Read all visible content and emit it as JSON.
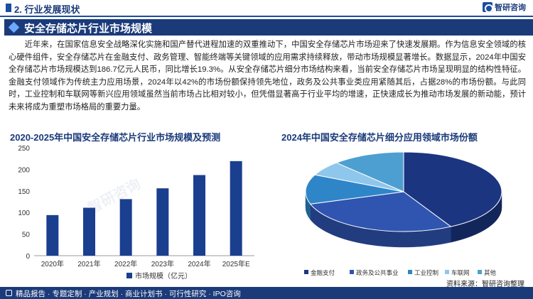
{
  "header": {
    "section_title": "2. 行业发展现状",
    "logo_text": "智研咨询"
  },
  "banner": {
    "title": "安全存储芯片行业市场规模"
  },
  "body": {
    "paragraph": "近年来，在国家信息安全战略深化实施和国产替代进程加速的双重推动下，中国安全存储芯片市场迎来了快速发展期。作为信息安全领域的核心硬件组件，安全存储芯片在金融支付、政务管理、智能终端等关键领域的应用需求持续释放，带动市场规模显著增长。数据显示，2024年中国安全存储芯片市场规模达到186.7亿元人民币，同比增长19.3%。从安全存储芯片细分市场结构来看，当前安全存储芯片市场呈现明显的结构性特征。金融支付领域作为传统主力应用场景，2024年以42%的市场份额保持领先地位，政务及公共事业类应用紧随其后，占据28%的市场份额。与此同时，工业控制和车联网等新兴应用领域虽然当前市场占比相对较小，但凭借显著高于行业平均的增速，正快速成长为推动市场发展的新动能，预计未来将成为重塑市场格局的重要力量。"
  },
  "colors": {
    "primary": "#1a3a7a",
    "bar": "#1b3f8f"
  },
  "chart_data": [
    {
      "type": "bar",
      "title": "2020-2025年中国安全存储芯片行业市场规模及预测",
      "categories": [
        "2020年",
        "2021年",
        "2022年",
        "2023年",
        "2024年",
        "2025年E"
      ],
      "series": [
        {
          "name": "市场规模（亿元）",
          "values": [
            94,
            111,
            131,
            156,
            186.7,
            219
          ]
        }
      ],
      "ylim": [
        0,
        250
      ],
      "yticks": [
        "0",
        "50",
        "100",
        "150",
        "200",
        "250"
      ],
      "legend_position": "bottom",
      "grid": false
    },
    {
      "type": "pie",
      "title": "2024年中国安全存储芯片细分应用领域市场份额",
      "labels": [
        "金融支付",
        "政务及公共事业",
        "工业控制",
        "车联网",
        "其他"
      ],
      "values": [
        42,
        28,
        12,
        6,
        12
      ],
      "colors": [
        "#1b3580",
        "#2f55b0",
        "#2e86c8",
        "#8fc6ec",
        "#4e9fd1"
      ],
      "legend_position": "bottom"
    }
  ],
  "footer": {
    "text": "精品报告 · 专题定制 · 产业规划 · 商业计划书 · 可行性研究 · IPO咨询"
  },
  "source": "资料来源：智研咨询整理",
  "watermark": "智研咨询"
}
